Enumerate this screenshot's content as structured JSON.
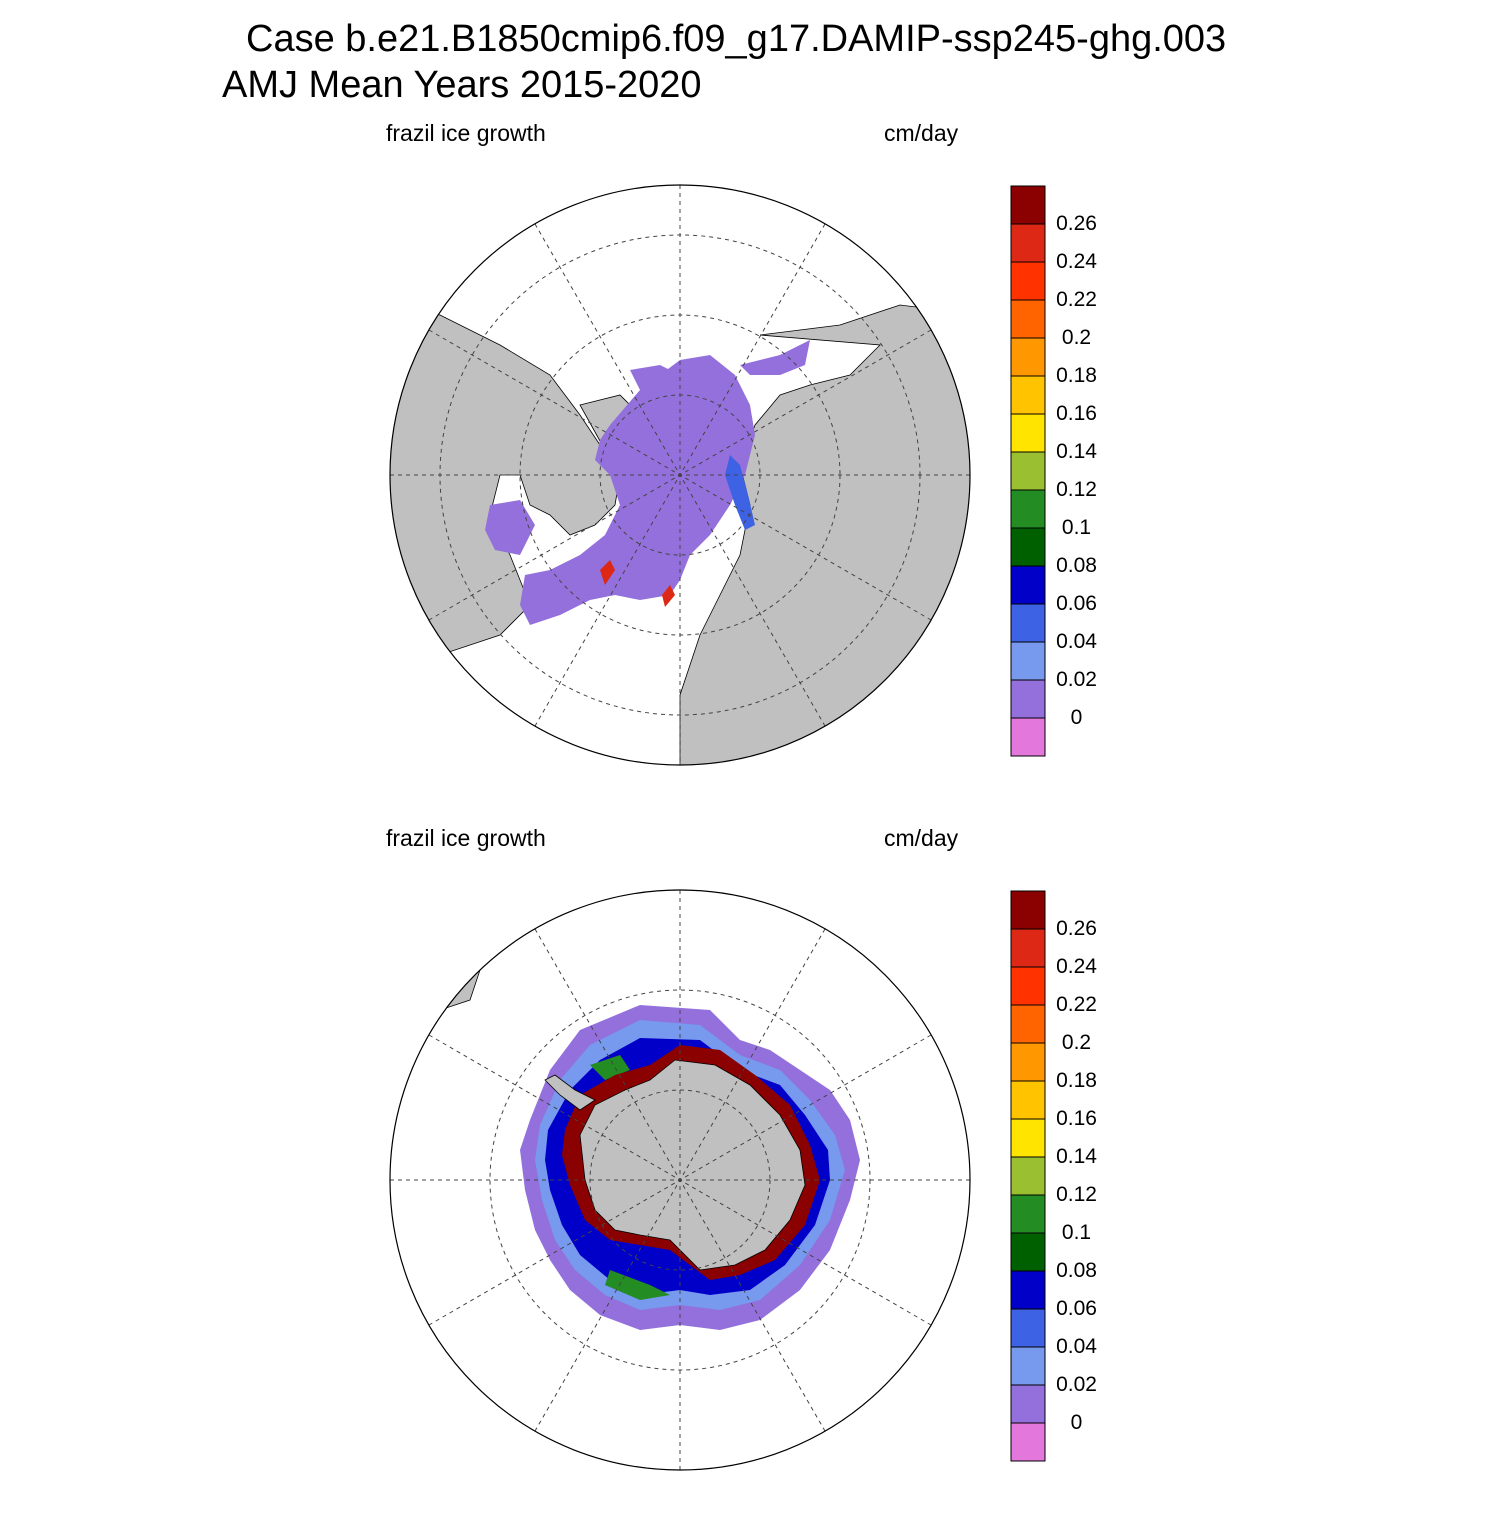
{
  "title": {
    "line1": "Case b.e21.B1850cmip6.f09_g17.DAMIP-ssp245-ghg.003",
    "line2": "AMJ Mean   Years 2015-2020"
  },
  "panels": [
    {
      "id": "north",
      "hemisphere": "Northern",
      "left_label": "frazil ice growth",
      "right_label": "cm/day"
    },
    {
      "id": "south",
      "hemisphere": "Southern",
      "left_label": "frazil ice growth",
      "right_label": "cm/day"
    }
  ],
  "colorbar": {
    "labels": [
      "0",
      "0.02",
      "0.04",
      "0.06",
      "0.08",
      "0.1",
      "0.12",
      "0.14",
      "0.16",
      "0.18",
      "0.2",
      "0.22",
      "0.24",
      "0.26"
    ],
    "colors": [
      "#e477dc",
      "#9370db",
      "#7799ee",
      "#3d62e4",
      "#0000c8",
      "#006000",
      "#238c23",
      "#9ac031",
      "#ffe400",
      "#ffc300",
      "#ff9800",
      "#ff6400",
      "#ff3200",
      "#dc2814",
      "#8b0000"
    ]
  },
  "colors": {
    "land": "#c0c0c0",
    "ocean": "#ffffff",
    "sea_ice_min": "#9370db",
    "grid": "#444444"
  }
}
